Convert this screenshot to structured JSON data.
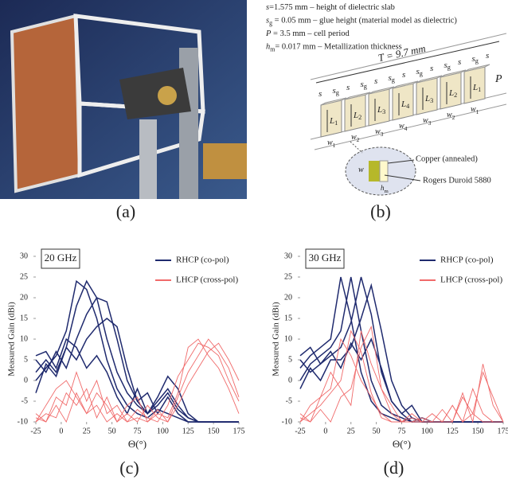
{
  "photo": {
    "label": "(a)"
  },
  "diagram": {
    "label": "(b)",
    "notes": [
      {
        "symbol": "s",
        "sub": "",
        "text": "=1.575 mm –  height of dielectric slab"
      },
      {
        "symbol": "s",
        "sub": "g",
        "text": " = 0.05 mm – glue height (material model as dielectric)"
      },
      {
        "symbol": "P",
        "sub": "",
        "text": " = 3.5 mm – cell period"
      },
      {
        "symbol": "h",
        "sub": "m",
        "text": "= 0.017 mm – Metallization thickness"
      }
    ],
    "period": "T = 9.7 mm",
    "gaps": [
      {
        "symbol": "s",
        "sub": ""
      },
      {
        "symbol": "s",
        "sub": "g"
      },
      {
        "symbol": "s",
        "sub": ""
      },
      {
        "symbol": "s",
        "sub": "g"
      },
      {
        "symbol": "s",
        "sub": ""
      },
      {
        "symbol": "s",
        "sub": "g"
      },
      {
        "symbol": "s",
        "sub": ""
      },
      {
        "symbol": "s",
        "sub": "g"
      },
      {
        "symbol": "s",
        "sub": ""
      },
      {
        "symbol": "s",
        "sub": "g"
      },
      {
        "symbol": "s",
        "sub": ""
      },
      {
        "symbol": "s",
        "sub": "g"
      },
      {
        "symbol": "s",
        "sub": ""
      }
    ],
    "cell_length": "L",
    "cell_width": "w",
    "cells": [
      "1",
      "2",
      "3",
      "4",
      "3",
      "2",
      "1"
    ],
    "cell_period": "P",
    "inset": {
      "width": "w",
      "thickness": "h",
      "thickness_sub": "m",
      "metal": "Copper (annealed)",
      "substrate": "Rogers Duroid 5880"
    }
  },
  "chart_data": [
    {
      "type": "line",
      "panel_label": "(c)",
      "annotation": "20 GHz",
      "xlabel": "Θ(°)",
      "ylabel": "Measured Gain (dBi)",
      "xlim": [
        -25,
        175
      ],
      "ylim": [
        -10,
        30
      ],
      "xticks": [
        -25,
        0,
        25,
        50,
        75,
        100,
        125,
        150,
        175
      ],
      "yticks": [
        -10,
        -5,
        0,
        5,
        10,
        15,
        20,
        25,
        30
      ],
      "x": [
        -25,
        -15,
        -5,
        5,
        15,
        25,
        35,
        45,
        55,
        65,
        75,
        85,
        95,
        105,
        115,
        125,
        135,
        145,
        155,
        165,
        175
      ],
      "series": [
        {
          "name": "RHCP (co-pol)",
          "color": "#1f2a6e",
          "curves": [
            [
              0,
              3,
              6,
              12,
              24,
              22,
              15,
              5,
              -2,
              -6,
              -8,
              -9,
              -7,
              -8,
              -9,
              -10,
              -10,
              -10,
              -10,
              -10,
              -10
            ],
            [
              2,
              5,
              2,
              8,
              18,
              24,
              20,
              10,
              2,
              -3,
              -6,
              -8,
              -5,
              -2,
              -6,
              -9,
              -10,
              -10,
              -10,
              -10,
              -10
            ],
            [
              5,
              2,
              7,
              3,
              10,
              16,
              20,
              19,
              10,
              0,
              -5,
              -8,
              -6,
              -3,
              -7,
              -9,
              -10,
              -10,
              -10,
              -10,
              -10
            ],
            [
              -3,
              4,
              1,
              8,
              5,
              10,
              13,
              15,
              13,
              3,
              -5,
              -3,
              -8,
              -4,
              -8,
              -10,
              -10,
              -10,
              -10,
              -10,
              -10
            ],
            [
              6,
              7,
              3,
              10,
              8,
              3,
              6,
              2,
              -4,
              -8,
              -2,
              -8,
              -4,
              1,
              -2,
              -8,
              -10,
              -10,
              -10,
              -10,
              -10
            ]
          ]
        },
        {
          "name": "LHCP (cross-pol)",
          "color": "#f06a6a",
          "curves": [
            [
              -10,
              -6,
              -2,
              0,
              -4,
              -8,
              -3,
              -6,
              -10,
              -6,
              -4,
              -10,
              -8,
              -9,
              -3,
              8,
              10,
              6,
              3,
              -2,
              -8
            ],
            [
              -8,
              -10,
              -4,
              -6,
              2,
              -5,
              0,
              -8,
              -6,
              -10,
              -7,
              -9,
              -10,
              -6,
              1,
              5,
              9,
              8,
              6,
              0,
              -5
            ],
            [
              -10,
              -8,
              -9,
              -3,
              -6,
              -2,
              -9,
              -4,
              -10,
              -8,
              -10,
              -6,
              -9,
              -10,
              -4,
              2,
              6,
              10,
              7,
              3,
              -4
            ],
            [
              -9,
              -10,
              -6,
              -10,
              -3,
              -8,
              -6,
              -10,
              -8,
              -10,
              -9,
              -10,
              -7,
              -10,
              -6,
              -1,
              3,
              7,
              9,
              5,
              0
            ]
          ]
        }
      ]
    },
    {
      "type": "line",
      "panel_label": "(d)",
      "annotation": "30 GHz",
      "xlabel": "Θ(°)",
      "ylabel": "Measured Gain (dBi)",
      "xlim": [
        -25,
        175
      ],
      "ylim": [
        -10,
        30
      ],
      "xticks": [
        -25,
        0,
        25,
        50,
        75,
        100,
        125,
        150,
        175
      ],
      "yticks": [
        -10,
        -5,
        0,
        5,
        10,
        15,
        20,
        25,
        30
      ],
      "x": [
        -25,
        -15,
        -5,
        5,
        15,
        25,
        35,
        45,
        55,
        65,
        75,
        85,
        95,
        105,
        115,
        125,
        135,
        145,
        155,
        165,
        175
      ],
      "series": [
        {
          "name": "RHCP (co-pol)",
          "color": "#1f2a6e",
          "curves": [
            [
              3,
              6,
              8,
              10,
              25,
              15,
              2,
              -5,
              -8,
              -9,
              -10,
              -9,
              -10,
              -10,
              -10,
              -10,
              -10,
              -10,
              -10,
              -10,
              -10
            ],
            [
              0,
              4,
              6,
              8,
              12,
              25,
              12,
              0,
              -6,
              -8,
              -9,
              -10,
              -10,
              -10,
              -10,
              -10,
              -10,
              -10,
              -10,
              -10,
              -10
            ],
            [
              5,
              2,
              4,
              6,
              8,
              14,
              25,
              16,
              2,
              -5,
              -8,
              -10,
              -9,
              -10,
              -10,
              -10,
              -10,
              -10,
              -10,
              -10,
              -10
            ],
            [
              -2,
              3,
              0,
              5,
              5,
              8,
              15,
              23,
              12,
              0,
              -6,
              -9,
              -10,
              -10,
              -10,
              -10,
              -10,
              -10,
              -10,
              -10,
              -10
            ],
            [
              6,
              8,
              4,
              7,
              3,
              9,
              5,
              10,
              3,
              -5,
              -8,
              -6,
              -10,
              -10,
              -10,
              -10,
              -10,
              -10,
              -10,
              -10,
              -10
            ]
          ]
        },
        {
          "name": "LHCP (cross-pol)",
          "color": "#f06a6a",
          "curves": [
            [
              -10,
              -6,
              -4,
              2,
              -2,
              -6,
              12,
              4,
              -2,
              -6,
              -10,
              -8,
              -10,
              -10,
              -10,
              -10,
              -4,
              -8,
              -10,
              -10,
              -10
            ],
            [
              -8,
              -10,
              -4,
              -2,
              10,
              6,
              0,
              -4,
              -8,
              -10,
              -10,
              -9,
              -10,
              -8,
              -10,
              -6,
              -10,
              -2,
              -8,
              -10,
              -10
            ],
            [
              -10,
              -8,
              -6,
              -3,
              0,
              12,
              7,
              -3,
              -9,
              -10,
              -10,
              -10,
              -9,
              -10,
              -7,
              -10,
              -3,
              -10,
              4,
              -6,
              -10
            ],
            [
              -9,
              -10,
              -7,
              -10,
              -4,
              -2,
              8,
              13,
              -2,
              -8,
              -10,
              -10,
              -10,
              -10,
              -10,
              -6,
              -10,
              -8,
              2,
              -4,
              -10
            ]
          ]
        }
      ]
    }
  ]
}
